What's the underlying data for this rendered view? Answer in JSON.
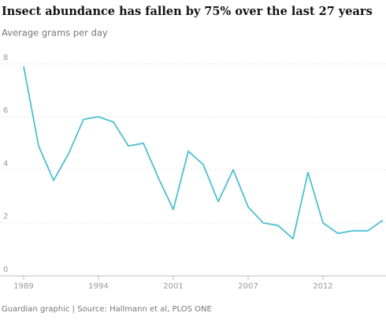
{
  "chart_data": {
    "type": "line",
    "title": "Insect abundance has fallen by 75% over the last 27 years",
    "subtitle": "Average grams per day",
    "source": "Guardian graphic | Source: Hallmann et al, PLOS ONE",
    "categories": [
      "1989",
      null,
      null,
      null,
      null,
      "1994",
      null,
      null,
      null,
      null,
      "2001",
      null,
      null,
      null,
      null,
      "2007",
      null,
      null,
      null,
      null,
      "2012",
      null,
      null,
      null,
      null
    ],
    "series": [
      {
        "name": "Average grams per day",
        "color": "#4dbfd3",
        "values": [
          7.9,
          4.9,
          3.6,
          4.6,
          5.9,
          6.0,
          5.8,
          4.9,
          5.0,
          3.7,
          2.5,
          4.7,
          4.2,
          2.8,
          4.0,
          2.6,
          2.0,
          1.9,
          1.4,
          3.9,
          2.0,
          1.6,
          1.7,
          1.7,
          2.1
        ]
      }
    ],
    "ylim": [
      0,
      8.5
    ],
    "yticks": [
      0,
      2,
      4,
      6,
      8
    ],
    "grid": true
  }
}
